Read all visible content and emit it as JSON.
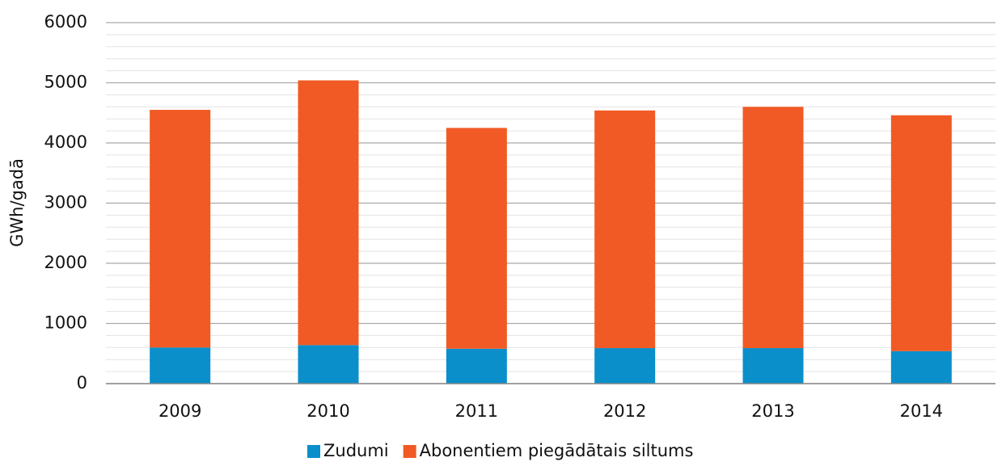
{
  "chart_data": {
    "type": "stacked_bar",
    "y_label": "GWh/gadā",
    "categories": [
      "2009",
      "2010",
      "2011",
      "2012",
      "2013",
      "2014"
    ],
    "series": [
      {
        "name": "Zudumi",
        "color": "#0a8fcb",
        "values": [
          600,
          640,
          580,
          590,
          590,
          540
        ]
      },
      {
        "name": "Abonentiem piegādātais siltums",
        "color": "#f15a24",
        "values": [
          3950,
          4400,
          3670,
          3950,
          4010,
          3920
        ]
      }
    ],
    "ylim": [
      0,
      6000
    ],
    "yticks": [
      0,
      1000,
      2000,
      3000,
      4000,
      5000,
      6000
    ],
    "minor_yticks": [
      200,
      400,
      600,
      800,
      1200,
      1400,
      1600,
      1800,
      2200,
      2400,
      2600,
      2800,
      3200,
      3400,
      3600,
      3800,
      4200,
      4400,
      4600,
      4800,
      5200,
      5400,
      5600,
      5800
    ],
    "grid": true,
    "legend": "bottom"
  }
}
